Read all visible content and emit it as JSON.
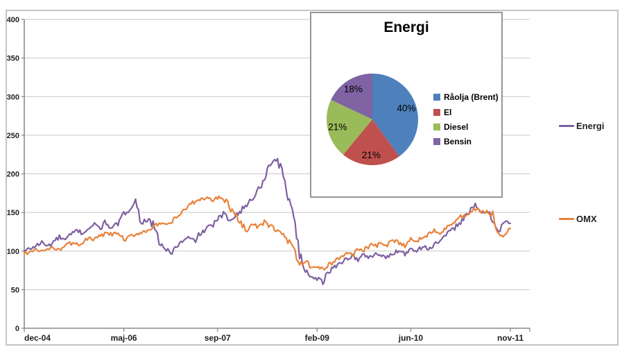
{
  "chart_data": [
    {
      "type": "line",
      "title": "",
      "x_start": "dec-04",
      "x_end": "nov-11",
      "x_unit": "month",
      "x_tick_labels": [
        "dec-04",
        "maj-06",
        "sep-07",
        "feb-09",
        "jun-10",
        "nov-11"
      ],
      "x_tick_months": [
        0,
        17,
        33,
        50,
        66,
        83
      ],
      "y_ticks": [
        400,
        350,
        300,
        250,
        200,
        150,
        100,
        50,
        0
      ],
      "ylim": [
        0,
        400
      ],
      "grid": true,
      "legend_position": "right",
      "axis_color": "#8a8a8a",
      "grid_color": "#c6c6c6",
      "tick_label_color": "#1f1f1f",
      "series": [
        {
          "name": "Energi",
          "color": "#7d60a0",
          "values": [
            100,
            103,
            107,
            111,
            106,
            112,
            118,
            114,
            121,
            127,
            123,
            130,
            134,
            130,
            138,
            128,
            136,
            147,
            156,
            164,
            137,
            141,
            133,
            112,
            103,
            97,
            106,
            112,
            117,
            113,
            122,
            128,
            133,
            140,
            148,
            140,
            147,
            152,
            160,
            169,
            179,
            196,
            212,
            221,
            204,
            172,
            148,
            95,
            75,
            68,
            64,
            61,
            72,
            80,
            85,
            90,
            94,
            88,
            95,
            92,
            97,
            94,
            91,
            97,
            102,
            96,
            104,
            101,
            106,
            103,
            108,
            113,
            119,
            127,
            134,
            143,
            151,
            158,
            149,
            152,
            140,
            127,
            138,
            136
          ]
        },
        {
          "name": "OMX",
          "color": "#e7823b",
          "values": [
            97,
            99,
            101,
            100,
            102,
            104,
            103,
            107,
            110,
            108,
            112,
            116,
            115,
            119,
            123,
            121,
            124,
            113,
            118,
            122,
            124,
            127,
            131,
            135,
            133,
            137,
            143,
            151,
            158,
            163,
            166,
            170,
            165,
            169,
            171,
            158,
            146,
            136,
            128,
            134,
            131,
            137,
            132,
            128,
            122,
            115,
            100,
            83,
            86,
            80,
            79,
            76,
            83,
            87,
            92,
            97,
            95,
            103,
            101,
            108,
            106,
            110,
            107,
            113,
            111,
            108,
            115,
            113,
            118,
            122,
            127,
            125,
            131,
            136,
            141,
            146,
            150,
            154,
            152,
            150,
            146,
            121,
            118,
            129
          ]
        }
      ]
    },
    {
      "type": "pie",
      "title": "Energi",
      "value_label_format": "percent",
      "slices": [
        {
          "label": "Råolja (Brent)",
          "pct": 40,
          "label_pct": "40%",
          "color": "#4e80bc"
        },
        {
          "label": "El",
          "pct": 21,
          "label_pct": "21%",
          "color": "#bf504d"
        },
        {
          "label": "Diesel",
          "pct": 21,
          "label_pct": "21%",
          "color": "#9abb59"
        },
        {
          "label": "Bensin",
          "pct": 18,
          "label_pct": "18%",
          "color": "#7f63a2"
        }
      ]
    }
  ]
}
